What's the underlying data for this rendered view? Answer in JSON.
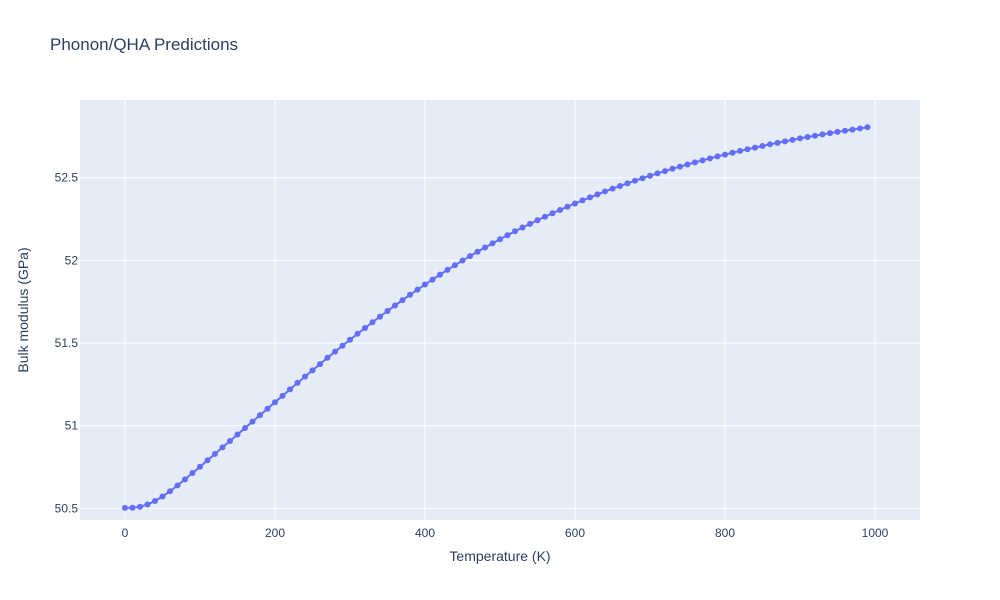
{
  "chart_data": {
    "type": "scatter",
    "mode": "lines+markers",
    "title": "Phonon/QHA Predictions",
    "xlabel": "Temperature (K)",
    "ylabel": "Bulk modulus (GPa)",
    "xlim": [
      -60,
      1060
    ],
    "ylim": [
      50.43,
      52.97
    ],
    "x_ticks": [
      0,
      200,
      400,
      600,
      800,
      1000
    ],
    "y_ticks": [
      50.5,
      51,
      51.5,
      52,
      52.5
    ],
    "x_tick_labels": [
      "0",
      "200",
      "400",
      "600",
      "800",
      "1000"
    ],
    "y_tick_labels": [
      "50.5",
      "51",
      "51.5",
      "52",
      "52.5"
    ],
    "grid": true,
    "colors": {
      "series": "#636efa",
      "plot_bg": "#e5ecf6",
      "grid": "#ffffff",
      "text": "#2a3f5f"
    },
    "series": [
      {
        "x": [
          0,
          10,
          20,
          30,
          40,
          50,
          60,
          70,
          80,
          90,
          100,
          110,
          120,
          130,
          140,
          150,
          160,
          170,
          180,
          190,
          200,
          210,
          220,
          230,
          240,
          250,
          260,
          270,
          280,
          290,
          300,
          310,
          320,
          330,
          340,
          350,
          360,
          370,
          380,
          390,
          400,
          410,
          420,
          430,
          440,
          450,
          460,
          470,
          480,
          490,
          500,
          510,
          520,
          530,
          540,
          550,
          560,
          570,
          580,
          590,
          600,
          610,
          620,
          630,
          640,
          650,
          660,
          670,
          680,
          690,
          700,
          710,
          720,
          730,
          740,
          750,
          760,
          770,
          780,
          790,
          800,
          810,
          820,
          830,
          840,
          850,
          860,
          870,
          880,
          890,
          900,
          910,
          920,
          930,
          940,
          950,
          960,
          970,
          980,
          990
        ],
        "y": [
          50.503,
          50.504,
          50.51,
          50.524,
          50.545,
          50.572,
          50.604,
          50.639,
          50.676,
          50.714,
          50.752,
          50.791,
          50.83,
          50.869,
          50.908,
          50.947,
          50.986,
          51.025,
          51.064,
          51.103,
          51.142,
          51.181,
          51.22,
          51.259,
          51.297,
          51.335,
          51.373,
          51.411,
          51.448,
          51.484,
          51.52,
          51.556,
          51.591,
          51.626,
          51.66,
          51.694,
          51.727,
          51.76,
          51.792,
          51.823,
          51.854,
          51.884,
          51.914,
          51.943,
          51.971,
          51.999,
          52.026,
          52.052,
          52.078,
          52.103,
          52.128,
          52.152,
          52.176,
          52.199,
          52.221,
          52.243,
          52.264,
          52.285,
          52.305,
          52.325,
          52.344,
          52.363,
          52.381,
          52.399,
          52.417,
          52.434,
          52.45,
          52.466,
          52.482,
          52.497,
          52.512,
          52.526,
          52.54,
          52.554,
          52.567,
          52.58,
          52.593,
          52.605,
          52.617,
          52.629,
          52.64,
          52.651,
          52.662,
          52.672,
          52.682,
          52.692,
          52.702,
          52.711,
          52.72,
          52.729,
          52.738,
          52.746,
          52.754,
          52.762,
          52.77,
          52.777,
          52.784,
          52.791,
          52.798,
          52.805
        ]
      }
    ]
  }
}
